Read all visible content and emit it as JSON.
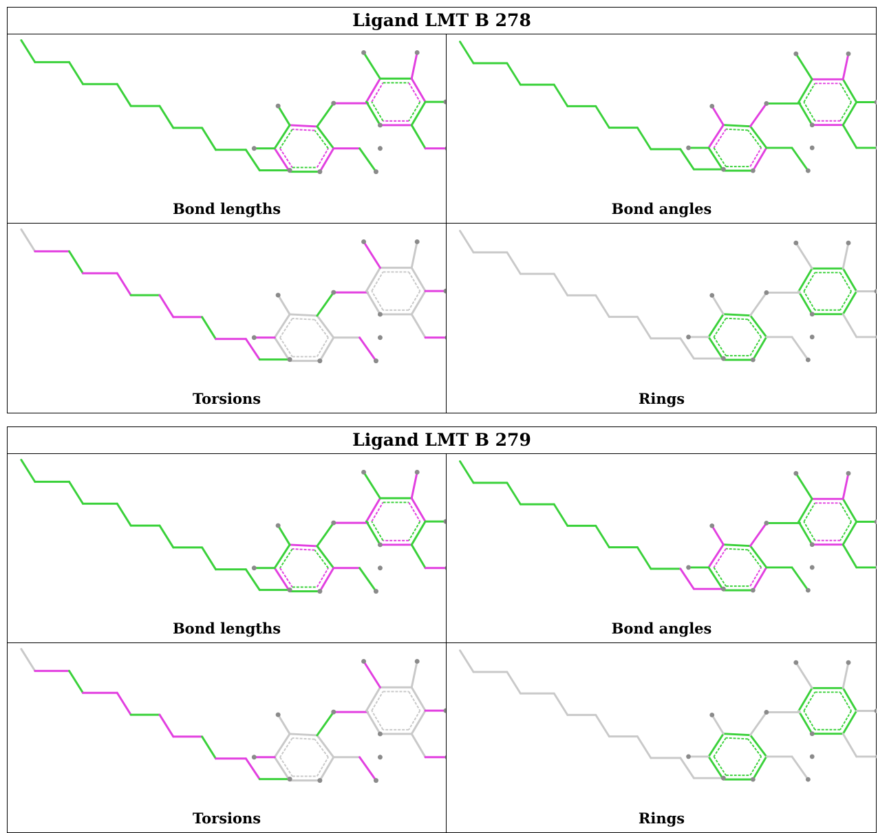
{
  "colors": {
    "good": "#3ad13a",
    "outlier": "#e23fe0",
    "neutral": "#c9c9c9",
    "atom": "#8a8a8a",
    "border": "#000000"
  },
  "ligands": [
    {
      "title": "Ligand LMT B 278",
      "panels": [
        {
          "label": "Bond lengths",
          "mode": "lengths"
        },
        {
          "label": "Bond angles",
          "mode": "angles"
        },
        {
          "label": "Torsions",
          "mode": "torsions"
        },
        {
          "label": "Rings",
          "mode": "rings"
        }
      ]
    },
    {
      "title": "Ligand LMT B 279",
      "panels": [
        {
          "label": "Bond lengths",
          "mode": "lengths"
        },
        {
          "label": "Bond angles",
          "mode": "angles2"
        },
        {
          "label": "Torsions",
          "mode": "torsions2"
        },
        {
          "label": "Rings",
          "mode": "rings"
        }
      ]
    }
  ]
}
